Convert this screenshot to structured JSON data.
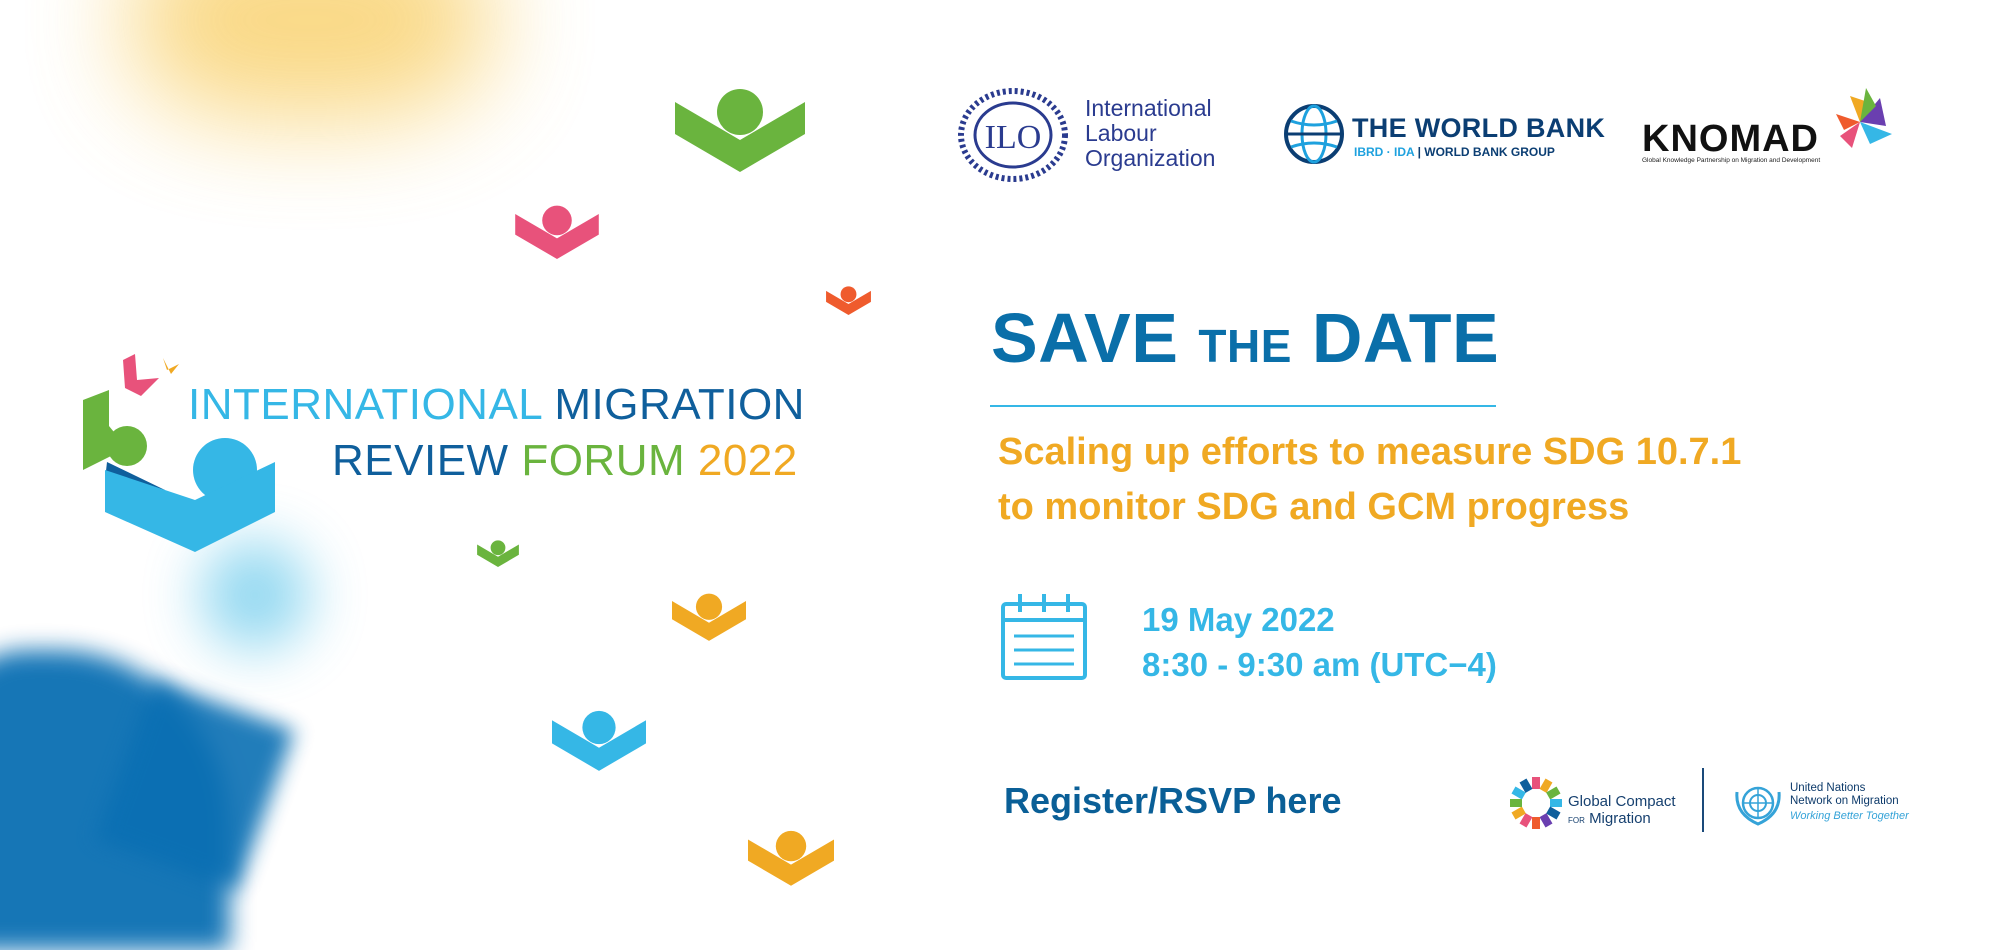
{
  "forum_logo": {
    "line1_a": "INTERNATIONAL",
    "line1_b": "MIGRATION",
    "line2_a": "REVIEW",
    "line2_b": "FORUM",
    "line2_c": "2022"
  },
  "partners": {
    "ilo": {
      "emblem_text": "ILO",
      "line1": "International",
      "line2": "Labour",
      "line3": "Organization"
    },
    "world_bank": {
      "title": "THE WORLD BANK",
      "sub_a": "IBRD · IDA",
      "sub_sep": "|",
      "sub_b": "WORLD BANK GROUP"
    },
    "knomad": {
      "name": "KNOMAD",
      "tagline": "Global Knowledge Partnership on Migration and Development"
    }
  },
  "headline": {
    "save": "SAVE",
    "the": "THE",
    "date": "DATE"
  },
  "subtitle": {
    "line1": "Scaling up efforts to measure SDG 10.7.1",
    "line2": "to monitor SDG and GCM progress"
  },
  "event": {
    "date": "19 May 2022",
    "time": "8:30 - 9:30 am (UTC−4)"
  },
  "register_link": "Register/RSVP here",
  "footer_logos": {
    "gcm_line1": "Global Compact",
    "gcm_for": "FOR",
    "gcm_line2": "Migration",
    "un_line1": "United Nations",
    "un_line2": "Network on Migration",
    "un_tagline": "Working Better Together"
  },
  "colors": {
    "navy": "#0a6fa9",
    "cyan": "#35b7e6",
    "orange": "#f0a923",
    "green": "#6ab43e",
    "pink": "#e8527b",
    "red_orange": "#ef5b2d",
    "dark_blue": "#0f5f9c"
  },
  "icons": [
    "calendar-icon",
    "bird-icon",
    "ilo-emblem-icon",
    "globe-icon",
    "knomad-star-icon",
    "gcm-wheel-icon",
    "un-emblem-icon"
  ]
}
